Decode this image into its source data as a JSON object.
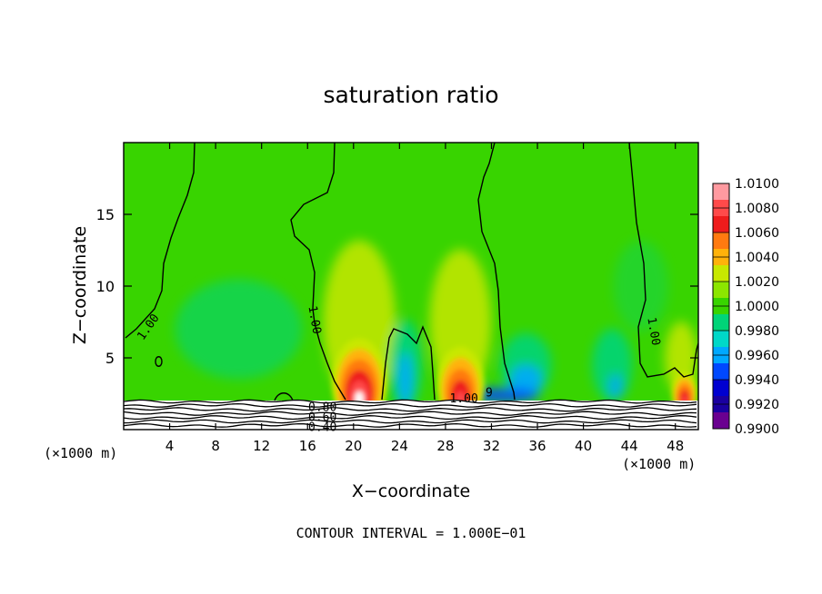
{
  "chart_data": {
    "type": "heatmap",
    "title": "saturation ratio",
    "xlabel": "X−coordinate",
    "ylabel": "Z−coordinate",
    "x_unit_left": "(×1000 m)",
    "x_unit_right": "(×1000 m)",
    "footer": "CONTOUR INTERVAL = 1.000E−01",
    "xlim": [
      0,
      50
    ],
    "ylim": [
      0,
      20
    ],
    "x_ticks": [
      4,
      8,
      12,
      16,
      20,
      24,
      28,
      32,
      36,
      40,
      44,
      48
    ],
    "y_ticks": [
      5,
      10,
      15
    ],
    "colorbar": {
      "levels": [
        "1.0100",
        "1.0080",
        "1.0060",
        "1.0040",
        "1.0020",
        "1.0000",
        "0.9980",
        "0.9960",
        "0.9940",
        "0.9920",
        "0.9900"
      ],
      "colors": [
        "#ff9aa0",
        "#ff4a4a",
        "#ee1c1c",
        "#ff7a10",
        "#ffb20a",
        "#c8e800",
        "#8ce600",
        "#38d400",
        "#00d478",
        "#00d8c8",
        "#00a8ff",
        "#0048ff",
        "#0000d0",
        "#1a00a0",
        "#6a0090"
      ]
    },
    "contour_labels": [
      {
        "text": "1.00",
        "x": 2.4,
        "z": 7.0
      },
      {
        "text": "1.00",
        "x": 16.3,
        "z": 7.6
      },
      {
        "text": "1.00",
        "x": 45.8,
        "z": 6.8
      },
      {
        "text": "1.00",
        "x": 29.6,
        "z": 1.9
      },
      {
        "text": "9",
        "x": 31.8,
        "z": 2.3
      },
      {
        "text": "0.80",
        "x": 17.3,
        "z": 1.3
      },
      {
        "text": "0.60",
        "x": 17.3,
        "z": 0.6
      },
      {
        "text": "0.40",
        "x": 17.3,
        "z": -0.1
      }
    ],
    "features": [
      {
        "kind": "max",
        "x": 20.5,
        "z": 3.2,
        "value": 1.01
      },
      {
        "kind": "max",
        "x": 29.3,
        "z": 3.0,
        "value": 1.007
      },
      {
        "kind": "max",
        "x": 48.8,
        "z": 2.5,
        "value": 1.0065
      },
      {
        "kind": "min",
        "x": 24.5,
        "z": 3.5,
        "value": 0.9955
      },
      {
        "kind": "min",
        "x": 35.0,
        "z": 3.5,
        "value": 0.9955
      },
      {
        "kind": "min",
        "x": 42.8,
        "z": 3.3,
        "value": 0.996
      }
    ]
  }
}
